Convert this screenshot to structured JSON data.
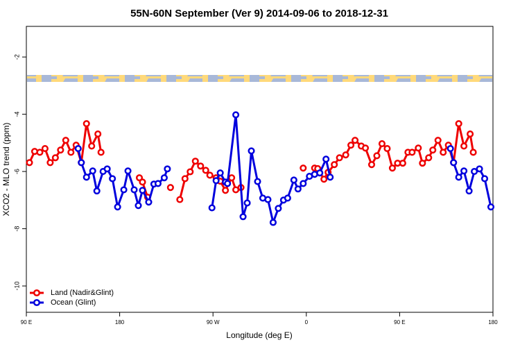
{
  "chart_data": {
    "type": "line",
    "title": "55N-60N September (Ver 9)   2014-09-06 to 2018-12-31",
    "x_label": "Longitude (deg E)",
    "y_label": "XCO2 - MLO trend (ppm)",
    "xlim": [
      90,
      540
    ],
    "ylim": [
      -10.92,
      -0.93
    ],
    "xticks": [
      {
        "value": 90,
        "label": "90 E"
      },
      {
        "value": 180,
        "label": "180"
      },
      {
        "value": 270,
        "label": "90 W"
      },
      {
        "value": 360,
        "label": "0"
      },
      {
        "value": 450,
        "label": "90 E"
      },
      {
        "value": 540,
        "label": "180"
      }
    ],
    "yticks": [
      -2,
      -4,
      -6,
      -8,
      -10
    ],
    "legend": "bottom-left",
    "series": [
      {
        "name": "Land (Nadir&Glint)",
        "color": "#ee0000",
        "x": [
          93,
          98,
          103,
          108,
          113,
          118,
          123,
          128,
          133,
          138,
          143,
          148,
          153,
          159,
          162,
          170,
          199,
          202,
          207,
          212,
          229,
          235,
          238,
          243,
          248,
          253,
          258,
          263,
          267,
          273,
          277,
          282,
          288,
          292,
          297,
          320,
          357,
          362,
          368,
          371,
          377,
          381,
          387,
          392,
          398,
          403,
          407,
          413,
          417,
          423,
          428,
          433,
          438,
          443,
          448,
          453,
          458,
          462,
          468,
          472,
          478,
          482,
          487,
          492,
          497,
          502,
          507,
          512,
          518,
          521
        ],
        "values": [
          -5.69,
          -5.3,
          -5.33,
          -5.2,
          -5.69,
          -5.52,
          -5.25,
          -4.91,
          -5.33,
          -5.08,
          -5.69,
          -4.33,
          -5.11,
          -4.69,
          -5.33,
          null,
          -6.22,
          -6.37,
          -6.9,
          null,
          -6.56,
          null,
          -6.98,
          -6.25,
          -6.01,
          -5.64,
          -5.81,
          -5.96,
          -6.13,
          -6.22,
          -6.34,
          -6.66,
          -6.22,
          -6.64,
          -6.56,
          null,
          -5.88,
          null,
          -5.88,
          -5.9,
          -6.27,
          -6.03,
          -5.76,
          -5.52,
          -5.42,
          -5.08,
          -4.91,
          -5.11,
          -5.18,
          -5.76,
          -5.45,
          -5.03,
          -5.2,
          -5.88,
          -5.71,
          -5.71,
          -5.33,
          -5.33,
          -5.18,
          -5.71,
          -5.52,
          -5.25,
          -4.91,
          -5.33,
          -5.08,
          -5.69,
          -4.33,
          -5.11,
          -4.69,
          -5.33
        ]
      },
      {
        "name": "Ocean (Glint)",
        "color": "#0000dd",
        "x": [
          140,
          143,
          148,
          154,
          158,
          164,
          168,
          173,
          178,
          184,
          188,
          194,
          198,
          202,
          208,
          213,
          217,
          223,
          226,
          240,
          269,
          273,
          277,
          282,
          284,
          292,
          299,
          303,
          307,
          313,
          318,
          323,
          328,
          333,
          338,
          342,
          348,
          352,
          357,
          363,
          368,
          373,
          379,
          383,
          450,
          499,
          502,
          507,
          512,
          517,
          522,
          527,
          532,
          538
        ],
        "values": [
          -5.2,
          -5.69,
          -6.2,
          -5.98,
          -6.68,
          -6.0,
          -5.91,
          -6.25,
          -7.24,
          -6.64,
          -5.98,
          -6.64,
          -7.19,
          -6.66,
          -7.07,
          -6.44,
          -6.42,
          -6.22,
          -5.91,
          null,
          -7.27,
          -6.32,
          -6.05,
          -6.37,
          -6.42,
          -4.02,
          -7.58,
          -7.1,
          -5.28,
          -6.35,
          -6.93,
          -6.98,
          -7.78,
          -7.29,
          -7.0,
          -6.93,
          -6.3,
          -6.61,
          -6.42,
          -6.17,
          -6.1,
          -6.05,
          -5.57,
          -6.2,
          null,
          -5.2,
          -5.69,
          -6.2,
          -5.98,
          -6.68,
          -6.0,
          -5.91,
          -6.25,
          -7.24
        ]
      }
    ]
  }
}
